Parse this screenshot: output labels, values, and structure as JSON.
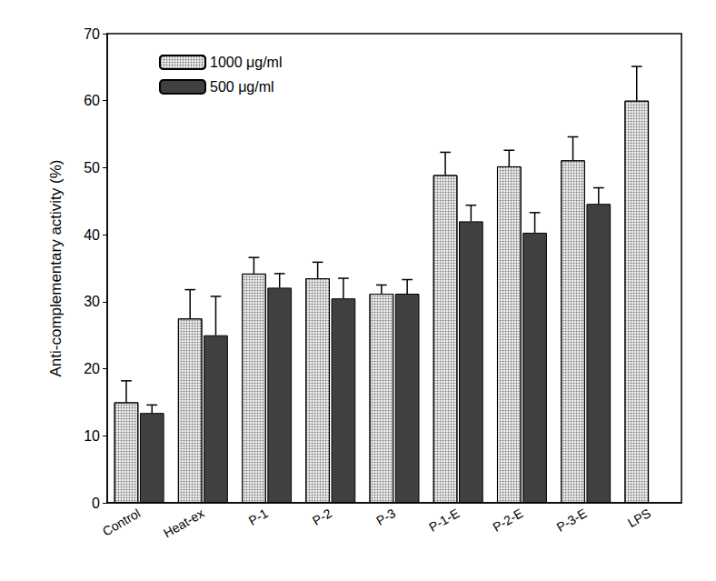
{
  "chart_data": {
    "type": "bar",
    "y_label": "Anti-complementary activity (%)",
    "categories": [
      "Control",
      "Heat-ex",
      "P-1",
      "P-2",
      "P-3",
      "P-1-E",
      "P-2-E",
      "P-3-E",
      "LPS"
    ],
    "series": [
      {
        "name": "1000 μg/ml",
        "color": "#e6e6e6",
        "values": [
          15.0,
          27.5,
          34.2,
          33.5,
          31.2,
          48.9,
          50.2,
          51.1,
          60.0
        ],
        "errors": [
          3.2,
          4.3,
          2.4,
          2.4,
          1.3,
          3.4,
          2.4,
          3.5,
          5.1
        ]
      },
      {
        "name": "500 μg/ml",
        "color": "#404040",
        "values": [
          13.4,
          25.0,
          32.1,
          30.5,
          31.2,
          42.0,
          40.3,
          44.6,
          null
        ],
        "errors": [
          1.2,
          5.8,
          2.1,
          3.0,
          2.1,
          2.4,
          3.0,
          2.4,
          null
        ]
      }
    ],
    "ylim": [
      0,
      70
    ],
    "yticks": [
      0,
      10,
      20,
      30,
      40,
      50,
      60,
      70
    ],
    "grid": false,
    "legend": "top-left"
  }
}
